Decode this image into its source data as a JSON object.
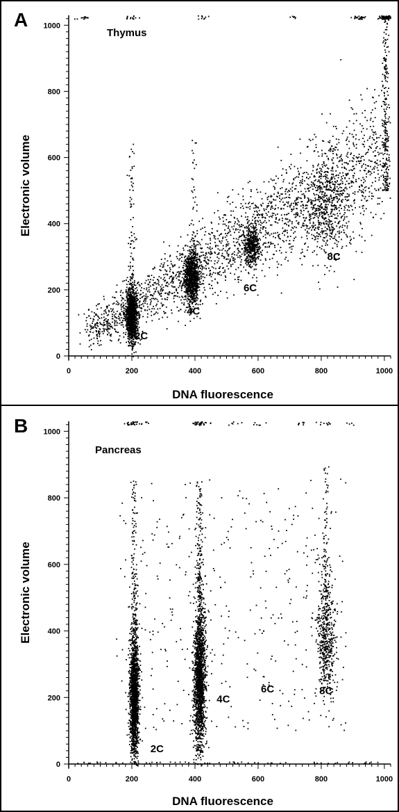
{
  "chart_data": [
    {
      "type": "scatter",
      "panel_label": "A",
      "tissue_label": "Thymus",
      "xlabel": "DNA fluorescence",
      "ylabel": "Electronic volume",
      "xlim": [
        0,
        1020
      ],
      "ylim": [
        0,
        1030
      ],
      "xticks": [
        0,
        200,
        400,
        600,
        800,
        1000
      ],
      "yticks": [
        0,
        200,
        400,
        600,
        800,
        1000
      ],
      "x_tick_labels": [
        "0",
        "200",
        "400",
        "600",
        "800",
        "1000"
      ],
      "y_tick_labels": [
        "0",
        "200",
        "400",
        "600",
        "800",
        "1000"
      ],
      "annotations": [
        {
          "text": "2C",
          "x": 230,
          "y": 50
        },
        {
          "text": "4C",
          "x": 395,
          "y": 125
        },
        {
          "text": "6C",
          "x": 575,
          "y": 195
        },
        {
          "text": "8C",
          "x": 840,
          "y": 290
        }
      ],
      "clusters": [
        {
          "x": 200,
          "y": 120,
          "sx": 9,
          "sy": 40,
          "n": 1200
        },
        {
          "x": 390,
          "y": 235,
          "sx": 12,
          "sy": 40,
          "n": 900
        },
        {
          "x": 580,
          "y": 330,
          "sx": 14,
          "sy": 30,
          "n": 450
        },
        {
          "x": 820,
          "y": 450,
          "sx": 35,
          "sy": 70,
          "n": 450
        }
      ],
      "diagonal_band": {
        "x_start": 60,
        "y_start": 70,
        "x_end": 1000,
        "y_end": 620,
        "spread": 70,
        "n": 2300
      },
      "columns": [
        {
          "x": 200,
          "y_min": 150,
          "y_max": 650,
          "n": 90
        },
        {
          "x": 395,
          "y_min": 270,
          "y_max": 660,
          "n": 50
        },
        {
          "x": 1005,
          "y_min": 500,
          "y_max": 1030,
          "n": 220
        }
      ],
      "top_saturation": [
        {
          "x": 55,
          "n": 12
        },
        {
          "x": 200,
          "n": 15
        },
        {
          "x": 420,
          "n": 10
        },
        {
          "x": 720,
          "n": 6
        },
        {
          "x": 920,
          "n": 25
        },
        {
          "x": 1010,
          "n": 90
        }
      ]
    },
    {
      "type": "scatter",
      "panel_label": "B",
      "tissue_label": "Pancreas",
      "xlabel": "DNA fluorescence",
      "ylabel": "Electronic volume",
      "xlim": [
        0,
        1020
      ],
      "ylim": [
        0,
        1030
      ],
      "xticks": [
        0,
        200,
        400,
        600,
        800,
        1000
      ],
      "yticks": [
        0,
        200,
        400,
        600,
        800,
        1000
      ],
      "x_tick_labels": [
        "0",
        "200",
        "400",
        "600",
        "800",
        "1000"
      ],
      "y_tick_labels": [
        "0",
        "200",
        "400",
        "600",
        "800",
        "1000"
      ],
      "annotations": [
        {
          "text": "2C",
          "x": 280,
          "y": 35
        },
        {
          "text": "4C",
          "x": 490,
          "y": 185
        },
        {
          "text": "6C",
          "x": 630,
          "y": 215
        },
        {
          "text": "8C",
          "x": 815,
          "y": 210
        }
      ],
      "clusters": [
        {
          "x": 208,
          "y": 200,
          "sx": 7,
          "sy": 95,
          "n": 1700
        },
        {
          "x": 415,
          "y": 260,
          "sx": 9,
          "sy": 110,
          "n": 1700
        },
        {
          "x": 815,
          "y": 380,
          "sx": 14,
          "sy": 90,
          "n": 500
        }
      ],
      "scatter_background": {
        "x_min": 150,
        "x_max": 880,
        "y_min": 100,
        "y_max": 860,
        "n": 380
      },
      "columns": [
        {
          "x": 208,
          "y_min": 400,
          "y_max": 850,
          "n": 140
        },
        {
          "x": 415,
          "y_min": 500,
          "y_max": 850,
          "n": 150
        },
        {
          "x": 815,
          "y_min": 500,
          "y_max": 900,
          "n": 80
        }
      ],
      "top_saturation": [
        {
          "x": 205,
          "n": 30
        },
        {
          "x": 250,
          "n": 5
        },
        {
          "x": 420,
          "n": 30
        },
        {
          "x": 530,
          "n": 6
        },
        {
          "x": 610,
          "n": 6
        },
        {
          "x": 730,
          "n": 8
        },
        {
          "x": 810,
          "n": 10
        },
        {
          "x": 890,
          "n": 4
        }
      ],
      "baseline": {
        "x_min": 20,
        "x_max": 980,
        "n": 60
      }
    }
  ]
}
